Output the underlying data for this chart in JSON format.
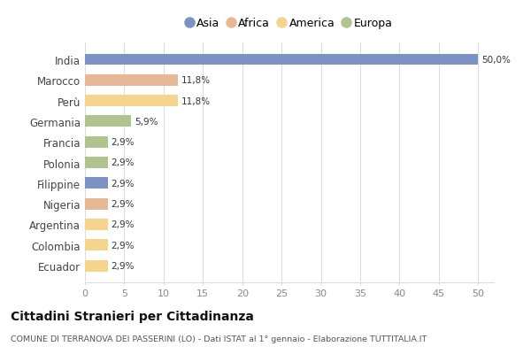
{
  "categories": [
    "India",
    "Marocco",
    "Perù",
    "Germania",
    "Francia",
    "Polonia",
    "Filippine",
    "Nigeria",
    "Argentina",
    "Colombia",
    "Ecuador"
  ],
  "values": [
    50.0,
    11.8,
    11.8,
    5.9,
    2.9,
    2.9,
    2.9,
    2.9,
    2.9,
    2.9,
    2.9
  ],
  "labels": [
    "50,0%",
    "11,8%",
    "11,8%",
    "5,9%",
    "2,9%",
    "2,9%",
    "2,9%",
    "2,9%",
    "2,9%",
    "2,9%",
    "2,9%"
  ],
  "colors": [
    "#7b93c4",
    "#e8b896",
    "#f5d48e",
    "#afc48e",
    "#afc48e",
    "#afc48e",
    "#7b93c4",
    "#e8b896",
    "#f5d48e",
    "#f5d48e",
    "#f5d48e"
  ],
  "legend_labels": [
    "Asia",
    "Africa",
    "America",
    "Europa"
  ],
  "legend_colors": [
    "#7b93c4",
    "#e8b896",
    "#f5d48e",
    "#afc48e"
  ],
  "title": "Cittadini Stranieri per Cittadinanza",
  "subtitle": "COMUNE DI TERRANOVA DEI PASSERINI (LO) - Dati ISTAT al 1° gennaio - Elaborazione TUTTITALIA.IT",
  "xlim": [
    0,
    52
  ],
  "xticks": [
    0,
    5,
    10,
    15,
    20,
    25,
    30,
    35,
    40,
    45,
    50
  ],
  "background_color": "#ffffff",
  "grid_color": "#dddddd",
  "bar_height": 0.55
}
